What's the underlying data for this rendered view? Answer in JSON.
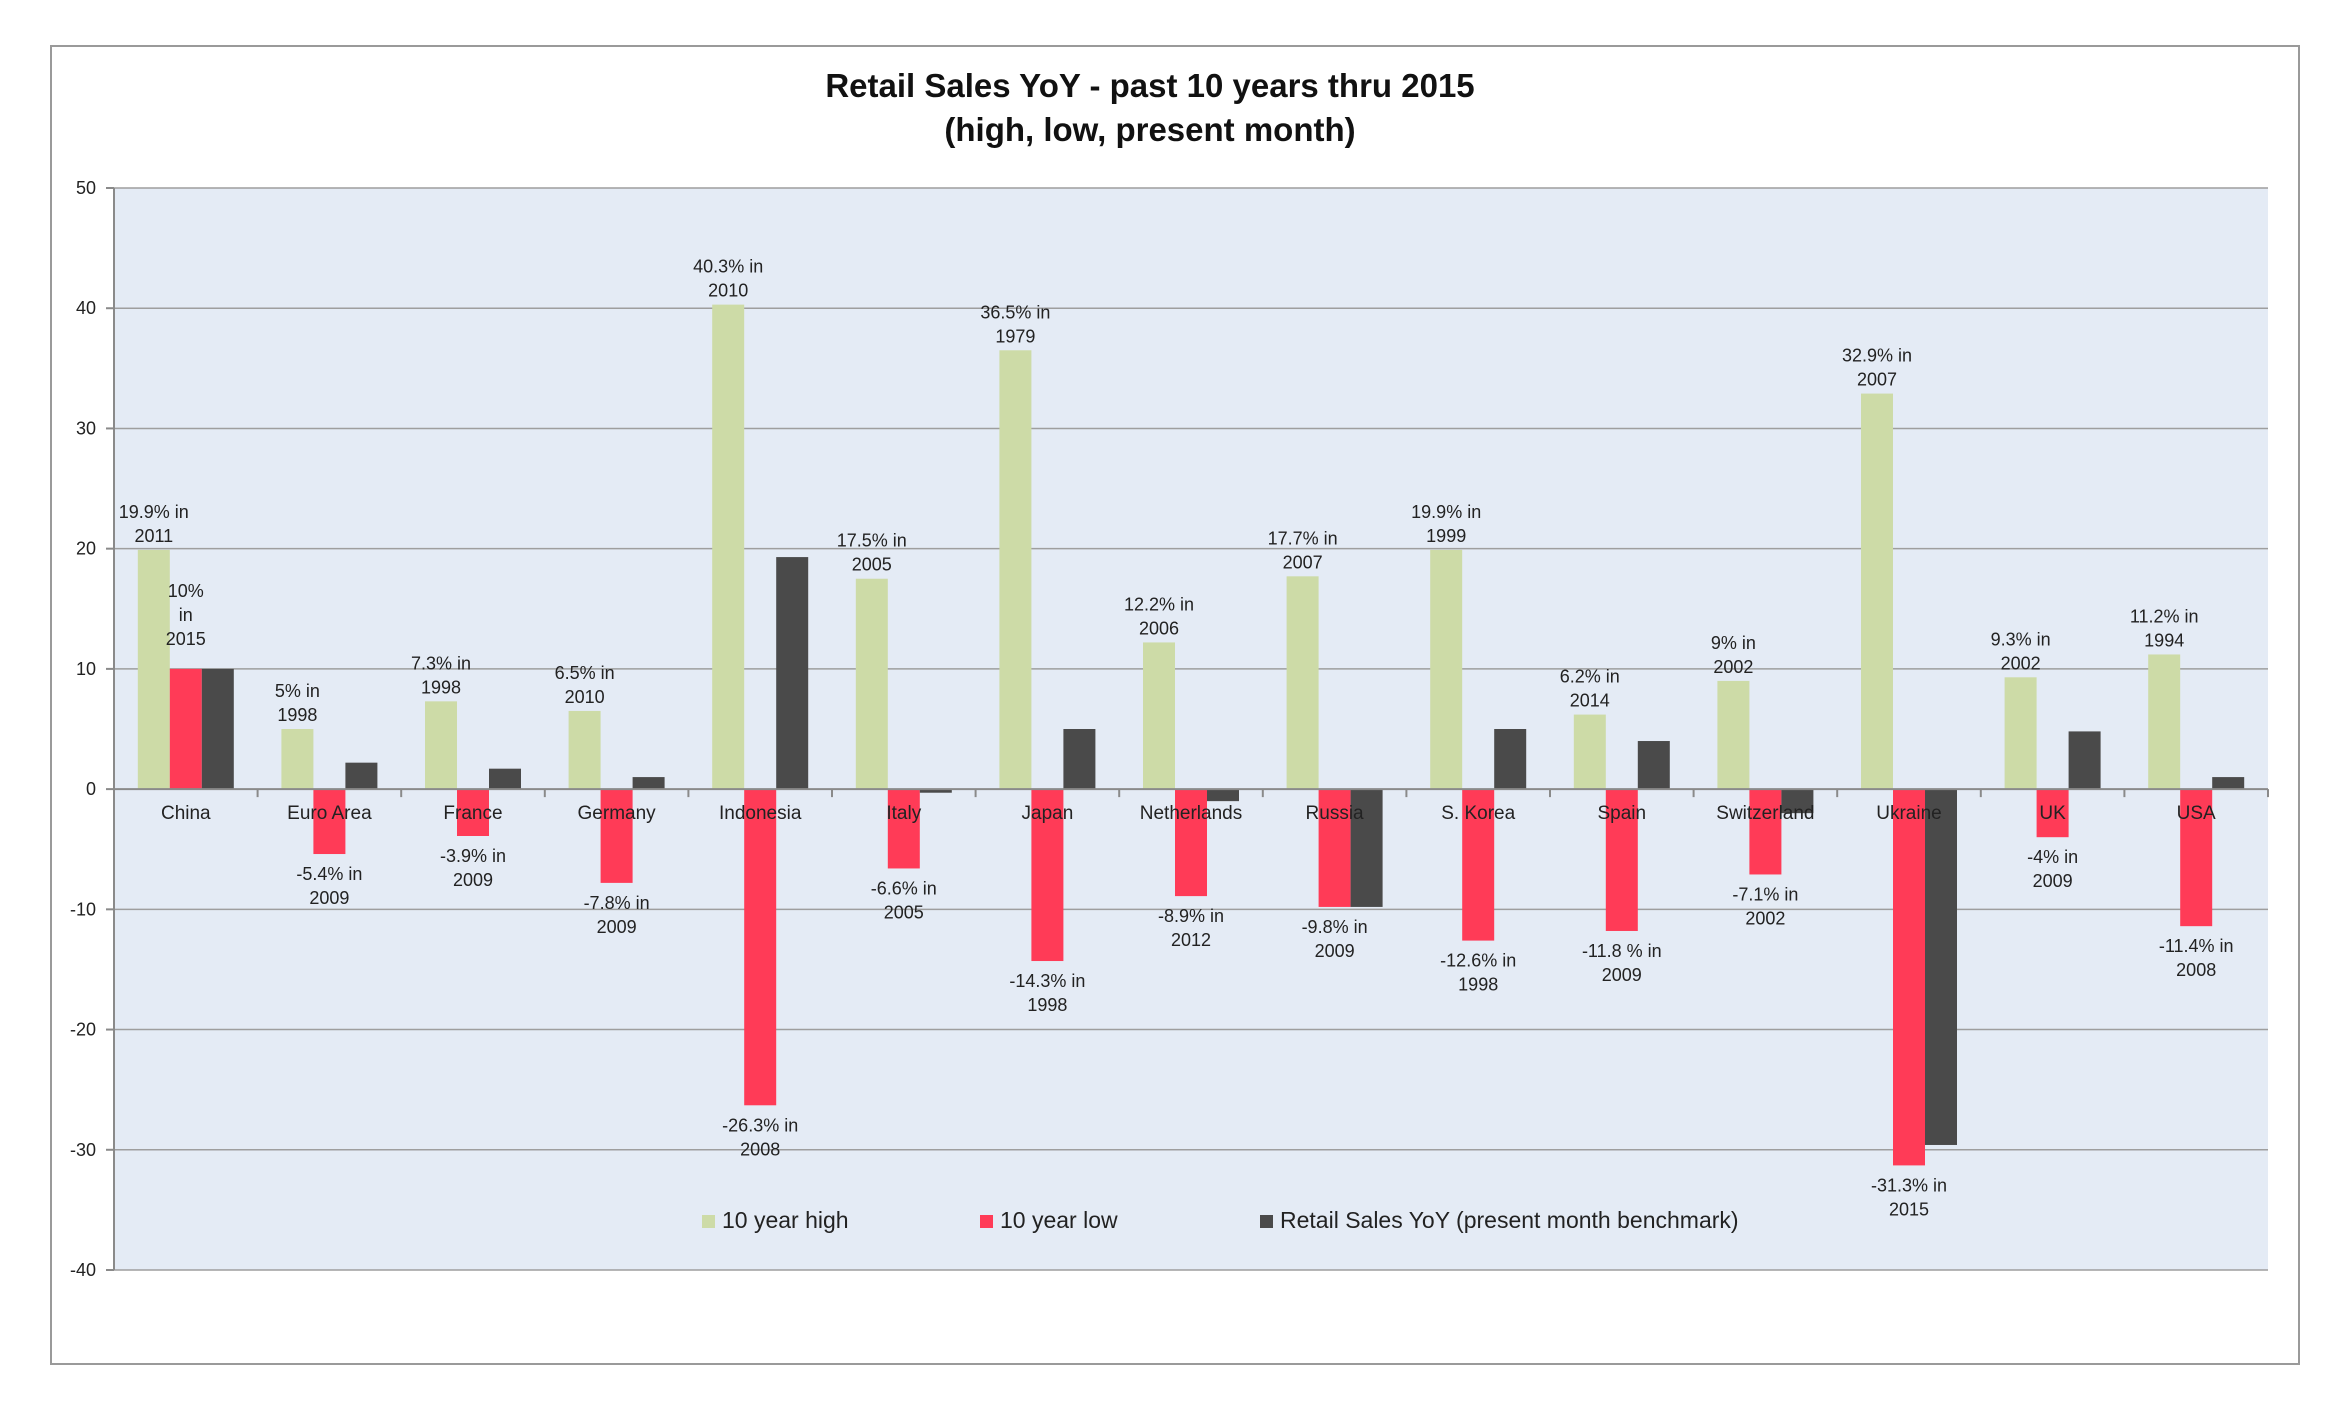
{
  "chart_data": {
    "type": "bar",
    "title": "Retail Sales YoY - past 10 years thru 2015",
    "subtitle": "(high, low, present month)",
    "xlabel": "",
    "ylabel": "",
    "ylim": [
      -40,
      50
    ],
    "yticks": [
      50,
      40,
      30,
      20,
      10,
      0,
      -10,
      -20,
      -30,
      -40
    ],
    "ytick_labels": [
      "50",
      "40",
      "30",
      "20",
      "10",
      "0",
      "-10",
      "-20",
      "-30",
      "-40"
    ],
    "grid": true,
    "legend_position": "bottom-center",
    "categories": [
      "China",
      "Euro Area",
      "France",
      "Germany",
      "Indonesia",
      "Italy",
      "Japan",
      "Netherlands",
      "Russia",
      "S. Korea",
      "Spain",
      "Switzerland",
      "Ukraine",
      "UK",
      "USA"
    ],
    "series": [
      {
        "name": "10 year high",
        "color": "#cddba7",
        "values": [
          19.9,
          5,
          7.3,
          6.5,
          40.3,
          17.5,
          36.5,
          12.2,
          17.7,
          19.9,
          6.2,
          9,
          32.9,
          9.3,
          11.2
        ],
        "labels": [
          [
            "19.9% in",
            "2011"
          ],
          [
            "5% in",
            "1998"
          ],
          [
            "7.3% in",
            "1998"
          ],
          [
            "6.5% in",
            "2010"
          ],
          [
            "40.3% in",
            "2010"
          ],
          [
            "17.5% in",
            "2005"
          ],
          [
            "36.5% in",
            "1979"
          ],
          [
            "12.2% in",
            "2006"
          ],
          [
            "17.7% in",
            "2007"
          ],
          [
            "19.9% in",
            "1999"
          ],
          [
            "6.2% in",
            "2014"
          ],
          [
            "9% in",
            "2002"
          ],
          [
            "32.9% in",
            "2007"
          ],
          [
            "9.3% in",
            "2002"
          ],
          [
            "11.2% in",
            "1994"
          ]
        ]
      },
      {
        "name": "10 year low",
        "color": "#ff3b57",
        "values": [
          10,
          -5.4,
          -3.9,
          -7.8,
          -26.3,
          -6.6,
          -14.3,
          -8.9,
          -9.8,
          -12.6,
          -11.8,
          -7.1,
          -31.3,
          -4,
          -11.4
        ],
        "labels": [
          [
            "10%",
            "in",
            "2015"
          ],
          [
            "-5.4% in",
            "2009"
          ],
          [
            "-3.9% in",
            "2009"
          ],
          [
            "-7.8% in",
            "2009"
          ],
          [
            "-26.3% in",
            "2008"
          ],
          [
            "-6.6% in",
            "2005"
          ],
          [
            "-14.3% in",
            "1998"
          ],
          [
            "-8.9% in",
            "2012"
          ],
          [
            "-9.8% in",
            "2009"
          ],
          [
            "-12.6% in",
            "1998"
          ],
          [
            "-11.8 % in",
            "2009"
          ],
          [
            "-7.1% in",
            "2002"
          ],
          [
            "-31.3% in",
            "2015"
          ],
          [
            "-4% in",
            "2009"
          ],
          [
            "-11.4% in",
            "2008"
          ]
        ]
      },
      {
        "name": "Retail Sales YoY (present month benchmark)",
        "color": "#4a4a4a",
        "values": [
          10,
          2.2,
          1.7,
          1,
          19.3,
          -0.3,
          5,
          -1,
          -9.8,
          5,
          4,
          -2,
          -29.6,
          4.8,
          1
        ]
      }
    ]
  }
}
